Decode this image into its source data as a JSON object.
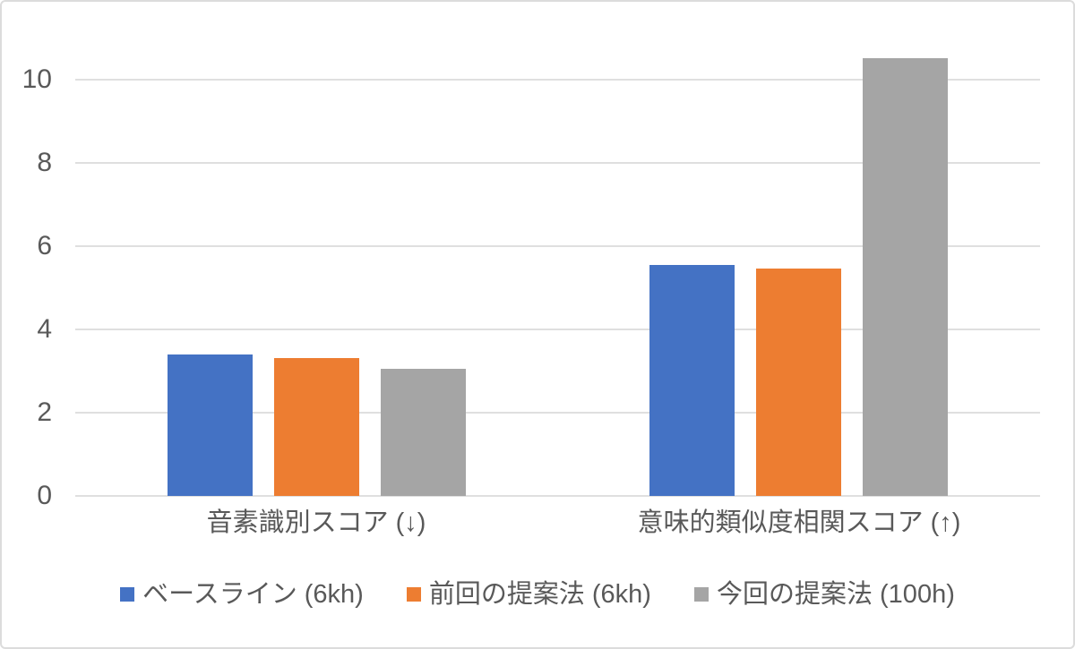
{
  "chart_data": {
    "type": "bar",
    "title": "",
    "xlabel": "",
    "ylabel": "",
    "categories": [
      "音素識別スコア (↓)",
      "意味的類似度相関スコア (↑)"
    ],
    "series": [
      {
        "name": "ベースライン (6kh)",
        "color": "#4472C4",
        "values": [
          3.4,
          5.55
        ]
      },
      {
        "name": "前回の提案法 (6kh)",
        "color": "#ED7D31",
        "values": [
          3.3,
          5.45
        ]
      },
      {
        "name": "今回の提案法 (100h)",
        "color": "#A5A5A5",
        "values": [
          3.05,
          10.5
        ]
      }
    ],
    "ylim": [
      0,
      11
    ],
    "yticks": [
      0,
      2,
      4,
      6,
      8,
      10
    ],
    "grid": true,
    "legend_position": "bottom",
    "colors": {
      "gridline": "#dfdfdf",
      "axis_text": "#595959",
      "frame_border": "#dcdcdc",
      "background": "#ffffff"
    }
  }
}
